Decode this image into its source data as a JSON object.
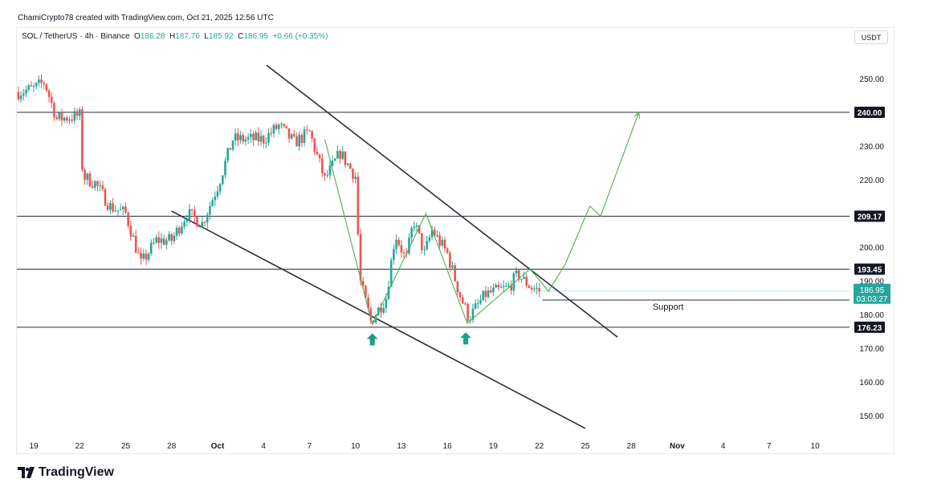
{
  "header": {
    "credit": "ChamiCrypto78 created with TradingView.com, Oct 21, 2025 12:56 UTC",
    "symbol": "SOL / TetherUS · 4h · Binance",
    "open_label": "O",
    "open": "186.28",
    "high_label": "H",
    "high": "187.76",
    "low_label": "L",
    "low": "185.92",
    "close_label": "C",
    "close": "186.95",
    "change": "+0.66 (+0.35%)",
    "currency": "USDT"
  },
  "brand": {
    "name": "TradingView"
  },
  "colors": {
    "up": "#26a69a",
    "down": "#ef5350",
    "projection": "#4caf50",
    "line": "#2a2e39",
    "axis_text": "#131722"
  },
  "chart_data": {
    "type": "candlestick",
    "timeframe": "4h",
    "ylim": [
      143,
      262
    ],
    "y_ticks": [
      "250.00",
      "240.00",
      "230.00",
      "220.00",
      "210.00",
      "200.00",
      "190.00",
      "180.00",
      "170.00",
      "160.00",
      "150.00"
    ],
    "x_ticks": [
      {
        "label": "19",
        "day": 0
      },
      {
        "label": "22",
        "day": 3
      },
      {
        "label": "25",
        "day": 6
      },
      {
        "label": "28",
        "day": 9
      },
      {
        "label": "Oct",
        "day": 12
      },
      {
        "label": "4",
        "day": 15
      },
      {
        "label": "7",
        "day": 18
      },
      {
        "label": "10",
        "day": 21
      },
      {
        "label": "13",
        "day": 24
      },
      {
        "label": "16",
        "day": 27
      },
      {
        "label": "19",
        "day": 30
      },
      {
        "label": "22",
        "day": 33
      },
      {
        "label": "25",
        "day": 36
      },
      {
        "label": "28",
        "day": 39
      },
      {
        "label": "Nov",
        "day": 42
      },
      {
        "label": "4",
        "day": 45
      },
      {
        "label": "7",
        "day": 48
      },
      {
        "label": "10",
        "day": 51
      }
    ],
    "price_path": [
      [
        -1,
        246
      ],
      [
        0,
        247
      ],
      [
        0.7,
        249
      ],
      [
        1.5,
        238
      ],
      [
        3,
        239
      ],
      [
        3.2,
        221
      ],
      [
        4,
        219
      ],
      [
        5,
        212
      ],
      [
        6,
        210
      ],
      [
        7,
        195
      ],
      [
        8,
        202
      ],
      [
        9,
        202
      ],
      [
        10,
        210
      ],
      [
        11,
        207
      ],
      [
        12,
        218
      ],
      [
        13,
        232
      ],
      [
        15,
        232
      ],
      [
        16,
        236
      ],
      [
        17,
        231
      ],
      [
        18,
        234
      ],
      [
        19,
        220
      ],
      [
        20,
        228
      ],
      [
        21,
        221
      ],
      [
        21.3,
        190
      ],
      [
        22,
        178
      ],
      [
        23,
        185
      ],
      [
        23.6,
        204
      ],
      [
        24.3,
        196
      ],
      [
        24.8,
        208
      ],
      [
        25.5,
        198
      ],
      [
        26,
        205
      ],
      [
        27,
        198
      ],
      [
        27.8,
        186
      ],
      [
        28.4,
        179
      ],
      [
        29.5,
        186
      ],
      [
        31,
        188
      ],
      [
        31.6,
        192
      ],
      [
        32,
        190
      ],
      [
        32.5,
        188
      ],
      [
        33,
        187
      ]
    ],
    "levels": [
      {
        "label": "240.00",
        "value": 240.0
      },
      {
        "label": "209.17",
        "value": 209.17
      },
      {
        "label": "193.45",
        "value": 193.45
      },
      {
        "label": "176.23",
        "value": 176.23
      }
    ],
    "support": {
      "label": "Support",
      "value": 184.3
    },
    "current_price": {
      "label": "186.95",
      "value": 186.95,
      "countdown": "03:03:27"
    },
    "channel_upper": [
      [
        15.2,
        254.0
      ],
      [
        38.1,
        173.3
      ]
    ],
    "channel_lower": [
      [
        9.0,
        210.7
      ],
      [
        36.0,
        146.2
      ]
    ],
    "zigzag": [
      [
        19.0,
        232.0
      ],
      [
        22.1,
        177.0
      ],
      [
        25.6,
        210.0
      ],
      [
        28.3,
        177.4
      ],
      [
        32.4,
        193.5
      ],
      [
        33.6,
        186.9
      ],
      [
        34.7,
        195.0
      ],
      [
        36.3,
        212.2
      ],
      [
        37.0,
        209.2
      ],
      [
        39.5,
        240.0
      ]
    ],
    "arrows": [
      {
        "day": 22.1,
        "value": 172.5
      },
      {
        "day": 28.2,
        "value": 172.8
      }
    ]
  }
}
